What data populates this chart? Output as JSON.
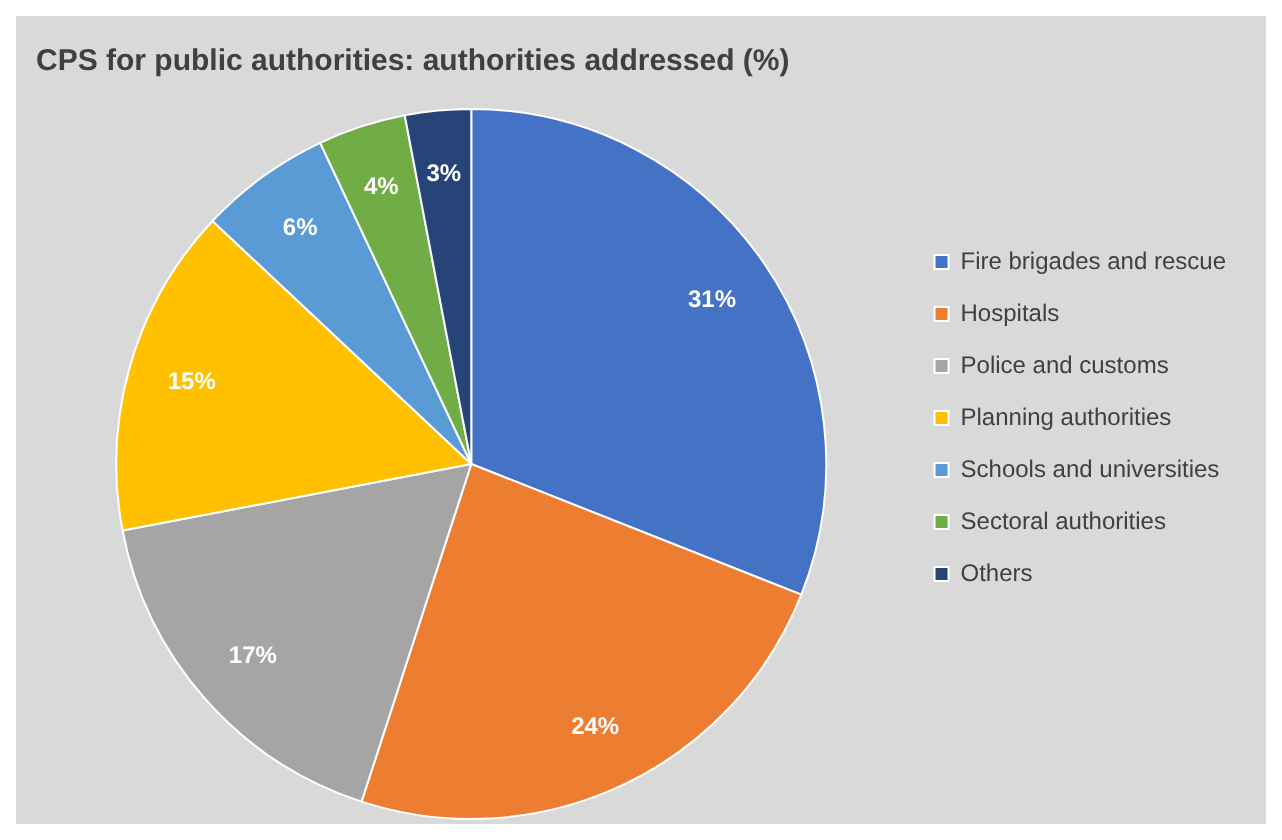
{
  "chart_data": {
    "type": "pie",
    "title": "CPS for public authorities: authorities addressed (%)",
    "categories": [
      "Fire brigades and rescue",
      "Hospitals",
      "Police and customs",
      "Planning authorities",
      "Schools and universities",
      "Sectoral authorities",
      "Others"
    ],
    "values": [
      31,
      24,
      17,
      15,
      6,
      4,
      3
    ],
    "colors": [
      "#4472c4",
      "#ed7d31",
      "#a5a5a5",
      "#ffc000",
      "#5b9bd5",
      "#70ad47",
      "#264478"
    ],
    "value_labels": [
      "31%",
      "24%",
      "17%",
      "15%",
      "6%",
      "4%",
      "3%"
    ],
    "legend": "right"
  }
}
